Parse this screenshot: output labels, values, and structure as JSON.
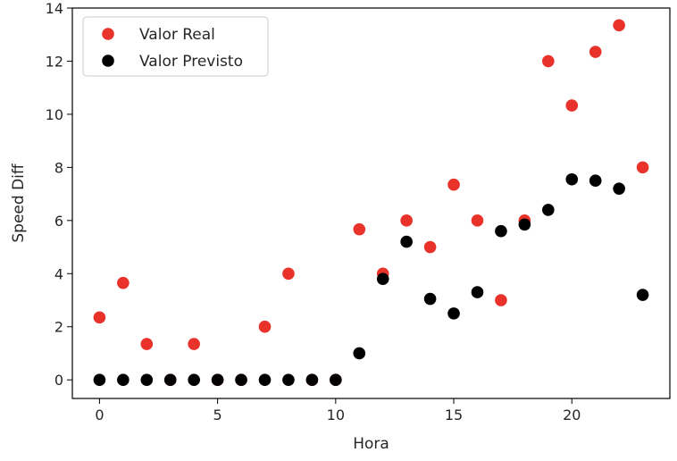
{
  "chart_data": {
    "type": "scatter",
    "title": "",
    "xlabel": "Hora",
    "ylabel": "Speed Diff",
    "xlim": [
      -1.15,
      24.15
    ],
    "ylim": [
      -0.7,
      14
    ],
    "xticks": [
      0,
      5,
      10,
      15,
      20
    ],
    "yticks": [
      0,
      2,
      4,
      6,
      8,
      10,
      12,
      14
    ],
    "legend_position": "top-left",
    "grid": false,
    "x": [
      0,
      1,
      2,
      3,
      4,
      5,
      6,
      7,
      8,
      9,
      10,
      11,
      12,
      13,
      14,
      15,
      16,
      17,
      18,
      19,
      20,
      21,
      22,
      23
    ],
    "series": [
      {
        "name": "Valor Real",
        "color": "#e8322a",
        "values": [
          2.35,
          3.65,
          1.35,
          0,
          1.35,
          0,
          0,
          2.0,
          4.0,
          0,
          0,
          5.67,
          4.0,
          6.0,
          5.0,
          7.35,
          6.0,
          3.0,
          6.0,
          12.0,
          10.33,
          12.35,
          13.35,
          8.0
        ]
      },
      {
        "name": "Valor Previsto",
        "color": "#000000",
        "values": [
          0,
          0,
          0,
          0,
          0,
          0,
          0,
          0,
          0,
          0,
          0,
          1.0,
          3.8,
          5.2,
          3.05,
          2.5,
          3.3,
          5.6,
          5.85,
          6.4,
          7.55,
          7.5,
          7.2,
          3.2
        ]
      }
    ]
  }
}
